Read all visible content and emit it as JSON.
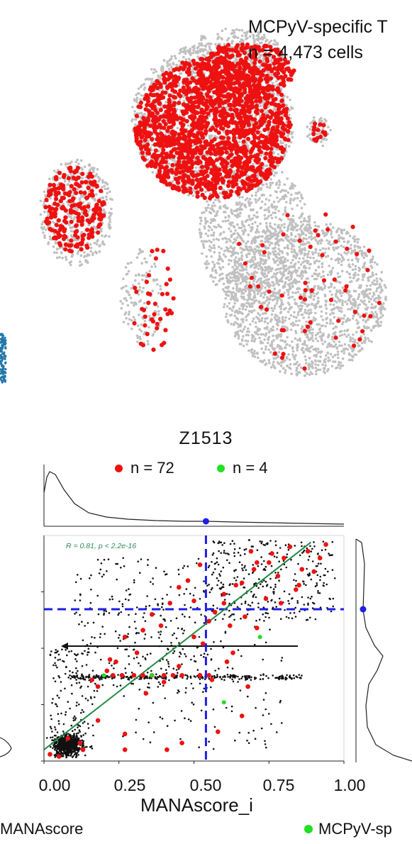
{
  "umap": {
    "title": "MCPyV-specific T",
    "count_label": "n = 4,473 cells",
    "colors": {
      "background_cells": "#c0c0c0",
      "specific_cells": "#ee1111",
      "left_cluster": "#2277aa"
    }
  },
  "chart_data": {
    "type": "scatter",
    "title": "Z1513",
    "xlabel": "MANAscore_i",
    "ylabel": "",
    "xlim": [
      0,
      1
    ],
    "x_ticks": [
      "0.00",
      "0.25",
      "0.50",
      "0.75",
      "1.00"
    ],
    "legend": [
      {
        "label": "n = 72",
        "color": "#ee1111"
      },
      {
        "label": "n = 4",
        "color": "#22e022"
      }
    ],
    "annotation": "R = 0.81, p < 2.2e-16",
    "threshold_x": 0.54,
    "regression": {
      "x0": 0.0,
      "y0": 0.05,
      "x1": 0.89,
      "y1": 0.97
    },
    "series": [
      {
        "color": "#ee1111",
        "points": [
          [
            0.02,
            0.03
          ],
          [
            0.05,
            0.02
          ],
          [
            0.08,
            0.1
          ],
          [
            0.13,
            0.05
          ],
          [
            0.18,
            0.33
          ],
          [
            0.21,
            0.4
          ],
          [
            0.23,
            0.38
          ],
          [
            0.26,
            0.38
          ],
          [
            0.3,
            0.38
          ],
          [
            0.33,
            0.38
          ],
          [
            0.36,
            0.38
          ],
          [
            0.4,
            0.38
          ],
          [
            0.43,
            0.38
          ],
          [
            0.46,
            0.38
          ],
          [
            0.52,
            0.38
          ],
          [
            0.55,
            0.38
          ],
          [
            0.34,
            0.3
          ],
          [
            0.4,
            0.35
          ],
          [
            0.45,
            0.42
          ],
          [
            0.5,
            0.55
          ],
          [
            0.55,
            0.62
          ],
          [
            0.6,
            0.7
          ],
          [
            0.64,
            0.78
          ],
          [
            0.7,
            0.85
          ],
          [
            0.75,
            0.88
          ],
          [
            0.78,
            0.82
          ],
          [
            0.8,
            0.9
          ],
          [
            0.85,
            0.78
          ],
          [
            0.9,
            0.84
          ],
          [
            0.94,
            0.96
          ],
          [
            0.76,
            0.92
          ],
          [
            0.71,
            0.88
          ],
          [
            0.66,
            0.79
          ],
          [
            0.6,
            0.74
          ],
          [
            0.52,
            0.87
          ],
          [
            0.48,
            0.8
          ],
          [
            0.45,
            0.77
          ],
          [
            0.42,
            0.7
          ],
          [
            0.36,
            0.65
          ],
          [
            0.33,
            0.58
          ],
          [
            0.27,
            0.55
          ],
          [
            0.22,
            0.45
          ],
          [
            0.16,
            0.36
          ],
          [
            0.71,
            0.59
          ],
          [
            0.63,
            0.48
          ],
          [
            0.68,
            0.33
          ],
          [
            0.66,
            0.2
          ],
          [
            0.58,
            0.13
          ],
          [
            0.46,
            0.08
          ],
          [
            0.41,
            0.05
          ],
          [
            0.27,
            0.12
          ],
          [
            0.27,
            0.05
          ],
          [
            0.12,
            0.08
          ],
          [
            0.18,
            0.18
          ],
          [
            0.82,
            0.95
          ],
          [
            0.88,
            0.93
          ],
          [
            0.86,
            0.85
          ],
          [
            0.74,
            0.72
          ],
          [
            0.62,
            0.6
          ],
          [
            0.57,
            0.66
          ],
          [
            0.5,
            0.71
          ],
          [
            0.39,
            0.6
          ],
          [
            0.31,
            0.48
          ],
          [
            0.24,
            0.44
          ],
          [
            0.69,
            0.93
          ],
          [
            0.79,
            0.7
          ],
          [
            0.84,
            0.76
          ],
          [
            0.92,
            0.9
          ],
          [
            0.56,
            0.36
          ],
          [
            0.61,
            0.44
          ],
          [
            0.53,
            0.52
          ],
          [
            0.67,
            0.64
          ]
        ]
      },
      {
        "color": "#22e022",
        "points": [
          [
            0.2,
            0.38
          ],
          [
            0.36,
            0.38
          ],
          [
            0.6,
            0.26
          ],
          [
            0.72,
            0.55
          ]
        ]
      }
    ]
  },
  "fragments": {
    "left_label": "MANAscore",
    "right_label": "MCPyV-sp"
  }
}
